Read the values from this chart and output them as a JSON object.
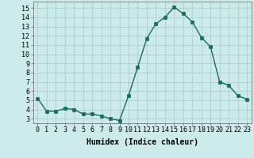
{
  "x": [
    0,
    1,
    2,
    3,
    4,
    5,
    6,
    7,
    8,
    9,
    10,
    11,
    12,
    13,
    14,
    15,
    16,
    17,
    18,
    19,
    20,
    21,
    22,
    23
  ],
  "y": [
    5.2,
    3.8,
    3.8,
    4.1,
    4.0,
    3.5,
    3.5,
    3.3,
    3.0,
    2.8,
    5.5,
    8.6,
    11.7,
    13.3,
    14.0,
    15.1,
    14.4,
    13.5,
    11.8,
    10.8,
    7.0,
    6.6,
    5.5,
    5.1
  ],
  "line_color": "#1a6b5a",
  "marker_color": "#1a6b5a",
  "bg_color": "#cceaea",
  "grid_color": "#aacfcf",
  "xlabel": "Humidex (Indice chaleur)",
  "ylim": [
    2.5,
    15.7
  ],
  "xlim": [
    -0.5,
    23.5
  ],
  "yticks": [
    3,
    4,
    5,
    6,
    7,
    8,
    9,
    10,
    11,
    12,
    13,
    14,
    15
  ],
  "xticks": [
    0,
    1,
    2,
    3,
    4,
    5,
    6,
    7,
    8,
    9,
    10,
    11,
    12,
    13,
    14,
    15,
    16,
    17,
    18,
    19,
    20,
    21,
    22,
    23
  ],
  "xlabel_fontsize": 7,
  "tick_fontsize": 6,
  "line_width": 1.0,
  "marker_size": 2.5
}
